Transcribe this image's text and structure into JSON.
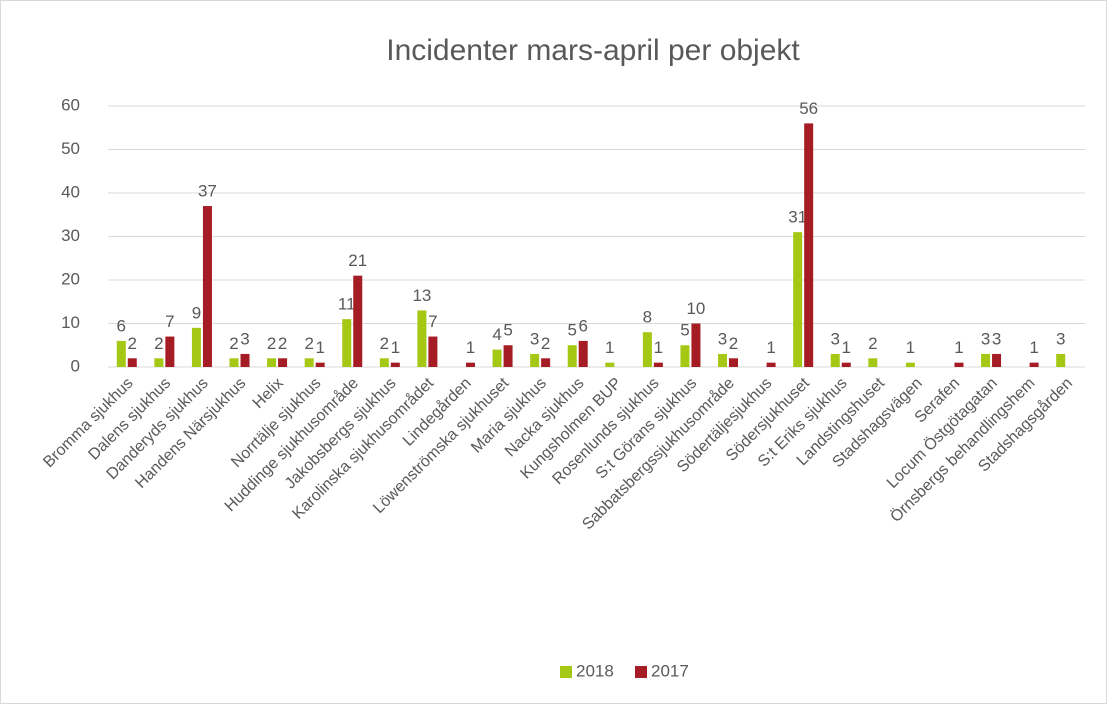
{
  "chart_data": {
    "type": "bar",
    "title": "Incidenter mars-april per objekt",
    "categories": [
      "Bromma sjukhus",
      "Dalens sjukhus",
      "Danderyds sjukhus",
      "Handens Närsjukhus",
      "Helix",
      "Norrtälje sjukhus",
      "Huddinge sjukhusområde",
      "Jakobsbergs sjukhus",
      "Karolinska sjukhusområdet",
      "Lindegården",
      "Löwenströmska sjukhuset",
      "Maria sjukhus",
      "Nacka sjukhus",
      "Kungsholmen BUP",
      "Rosenlunds sjukhus",
      "S:t Görans sjukhus",
      "Sabbatsbergssjukhusområde",
      "Södertäljesjukhus",
      "Södersjukhuset",
      "S:t Eriks sjukhus",
      "Landstingshuset",
      "Stadshagsvägen",
      "Serafen",
      "Locum Östgötagatan",
      "Örnsbergs behandlingshem",
      "Stadshagsgården"
    ],
    "series": [
      {
        "name": "2018",
        "color": "#a5c814",
        "values": [
          6,
          2,
          9,
          2,
          2,
          2,
          11,
          2,
          13,
          null,
          4,
          3,
          5,
          1,
          8,
          5,
          3,
          null,
          31,
          3,
          2,
          1,
          null,
          3,
          null,
          3
        ]
      },
      {
        "name": "2017",
        "color": "#a51c24",
        "values": [
          2,
          7,
          37,
          3,
          2,
          1,
          21,
          1,
          7,
          1,
          5,
          2,
          6,
          null,
          1,
          10,
          2,
          1,
          56,
          1,
          null,
          null,
          1,
          3,
          1,
          null
        ]
      }
    ],
    "ylim": [
      0,
      60
    ],
    "yticks": [
      0,
      10,
      20,
      30,
      40,
      50,
      60
    ],
    "grid": true,
    "legend": "bottom"
  }
}
